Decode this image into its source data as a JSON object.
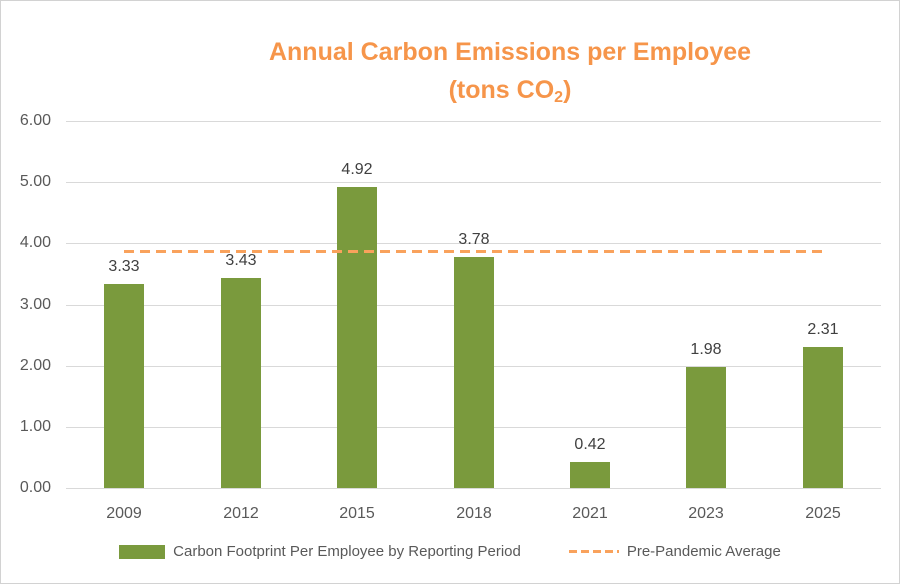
{
  "title": {
    "line1": "Annual Carbon Emissions per Employee",
    "line2_prefix": "(tons CO",
    "line2_sub": "2",
    "line2_suffix": ")"
  },
  "chart_data": {
    "type": "bar",
    "title": "Annual Carbon Emissions per Employee (tons CO2)",
    "categories": [
      "2009",
      "2012",
      "2015",
      "2018",
      "2021",
      "2023",
      "2025"
    ],
    "series": [
      {
        "name": "Carbon Footprint Per Employee by Reporting Period",
        "type": "bar",
        "values": [
          3.33,
          3.43,
          4.92,
          3.78,
          0.42,
          1.98,
          2.31
        ],
        "color": "#7a9a3d"
      },
      {
        "name": "Pre-Pandemic Average",
        "type": "dashed-line",
        "value": 3.87,
        "color": "#f9a25c"
      }
    ],
    "value_labels": [
      "3.33",
      "3.43",
      "4.92",
      "3.78",
      "0.42",
      "1.98",
      "2.31"
    ],
    "ylim": [
      0,
      6
    ],
    "ytick_step": 1,
    "ytick_labels": [
      "0.00",
      "1.00",
      "2.00",
      "3.00",
      "4.00",
      "5.00",
      "6.00"
    ],
    "grid": true,
    "legend_position": "bottom",
    "xlabel": "",
    "ylabel": ""
  },
  "colors": {
    "bar_green": "#7a9a3d",
    "line_orange": "#f9a25c",
    "title_orange": "#f6954a",
    "gridline_gray": "#d9d9d9",
    "axis_text_gray": "#595959",
    "data_label_gray": "#404040"
  }
}
